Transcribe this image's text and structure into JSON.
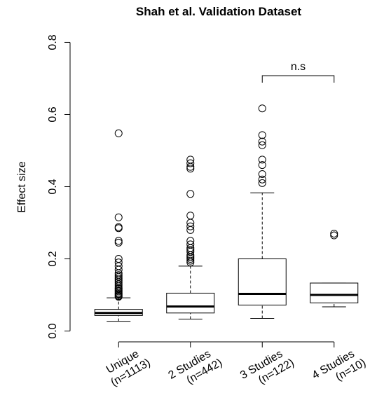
{
  "chart_data": {
    "type": "boxplot",
    "title": "Shah et al. Validation Dataset",
    "y_label": "Effect size",
    "categories": [
      "Unique",
      "2 Studies",
      "3 Studies",
      "4 Studies"
    ],
    "category_counts": [
      "(n=1113)",
      "(n=442)",
      "(n=122)",
      "(n=10)"
    ],
    "annotation": "n.s",
    "ylim": [
      -0.03,
      0.83
    ],
    "yticks": [
      {
        "value": 0,
        "label": "0.0"
      },
      0.2,
      0.4,
      0.6,
      0.8
    ],
    "boxes": [
      {
        "whisker_low": 0.027,
        "q1": 0.043,
        "median": 0.05,
        "q3": 0.06,
        "whisker_high": 0.092,
        "outliers": [
          0.095,
          0.097,
          0.1,
          0.103,
          0.106,
          0.11,
          0.113,
          0.117,
          0.12,
          0.125,
          0.13,
          0.135,
          0.14,
          0.145,
          0.15,
          0.155,
          0.16,
          0.17,
          0.18,
          0.19,
          0.2,
          0.245,
          0.25,
          0.285,
          0.288,
          0.315,
          0.548
        ]
      },
      {
        "whisker_low": 0.033,
        "q1": 0.05,
        "median": 0.068,
        "q3": 0.105,
        "whisker_high": 0.18,
        "outliers": [
          0.19,
          0.195,
          0.2,
          0.205,
          0.21,
          0.22,
          0.225,
          0.23,
          0.24,
          0.25,
          0.28,
          0.29,
          0.3,
          0.32,
          0.38,
          0.45,
          0.455,
          0.465,
          0.475
        ]
      },
      {
        "whisker_low": 0.035,
        "q1": 0.072,
        "median": 0.103,
        "q3": 0.2,
        "whisker_high": 0.383,
        "outliers": [
          0.41,
          0.42,
          0.435,
          0.46,
          0.475,
          0.515,
          0.525,
          0.543,
          0.617
        ]
      },
      {
        "whisker_low": 0.067,
        "q1": 0.078,
        "median": 0.1,
        "q3": 0.133,
        "whisker_high": 0.133,
        "outliers": [
          0.265,
          0.27
        ]
      }
    ]
  }
}
